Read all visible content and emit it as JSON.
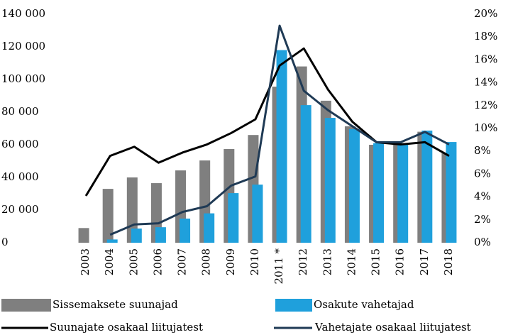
{
  "chart_data": {
    "type": "bar",
    "categories": [
      "2003",
      "2004",
      "2005",
      "2006",
      "2007",
      "2008",
      "2009",
      "2010",
      "2011 *",
      "2012",
      "2013",
      "2014",
      "2015",
      "2016",
      "2017",
      "2018"
    ],
    "series": [
      {
        "name": "Sissemaksete suunajad",
        "type": "bar",
        "color": "#7f7f7f",
        "values": [
          9000,
          33000,
          40000,
          36500,
          44300,
          50400,
          57400,
          66000,
          95600,
          108000,
          87000,
          71300,
          60000,
          61000,
          68000,
          55000
        ]
      },
      {
        "name": "Osakute vahetajad",
        "type": "bar",
        "color": "#1fa0dc",
        "values": [
          0,
          2000,
          8700,
          9500,
          14800,
          18000,
          30400,
          35600,
          118000,
          84300,
          76500,
          69600,
          61000,
          61000,
          68700,
          61700
        ]
      },
      {
        "name": "Suunajate osakaal liitujatest",
        "type": "line",
        "axis": "y2",
        "color": "#000000",
        "values": [
          4.1,
          7.6,
          8.4,
          7.0,
          7.9,
          8.6,
          9.6,
          10.8,
          15.5,
          17.0,
          13.4,
          10.6,
          8.8,
          8.6,
          8.8,
          7.6
        ]
      },
      {
        "name": "Vahetajate osakaal liitujatest",
        "type": "line",
        "axis": "y2",
        "color": "#1f3a55",
        "values": [
          null,
          0.7,
          1.6,
          1.7,
          2.7,
          3.2,
          5.0,
          5.8,
          19.0,
          13.3,
          11.6,
          10.2,
          8.8,
          8.8,
          9.7,
          8.6
        ]
      }
    ],
    "ylim": [
      0,
      140000
    ],
    "yticks": [
      0,
      {
        "value": 20000,
        "label": "20 000"
      },
      {
        "value": 40000,
        "label": "40 000"
      },
      {
        "value": 60000,
        "label": "60 000"
      },
      {
        "value": 80000,
        "label": "80 000"
      },
      {
        "value": 100000,
        "label": "100 000"
      },
      {
        "value": 120000,
        "label": "120 000"
      },
      {
        "value": 140000,
        "label": "140 000"
      }
    ],
    "y2lim": [
      0,
      20
    ],
    "y2ticks": [
      {
        "value": 0,
        "label": "0%"
      },
      {
        "value": 2,
        "label": "2%"
      },
      {
        "value": 4,
        "label": "4%"
      },
      {
        "value": 6,
        "label": "6%"
      },
      {
        "value": 8,
        "label": "8%"
      },
      {
        "value": 10,
        "label": "10%"
      },
      {
        "value": 12,
        "label": "12%"
      },
      {
        "value": 14,
        "label": "14%"
      },
      {
        "value": 16,
        "label": "16%"
      },
      {
        "value": 18,
        "label": "18%"
      },
      {
        "value": 20,
        "label": "20%"
      }
    ],
    "grid": false,
    "legend": "bottom"
  }
}
